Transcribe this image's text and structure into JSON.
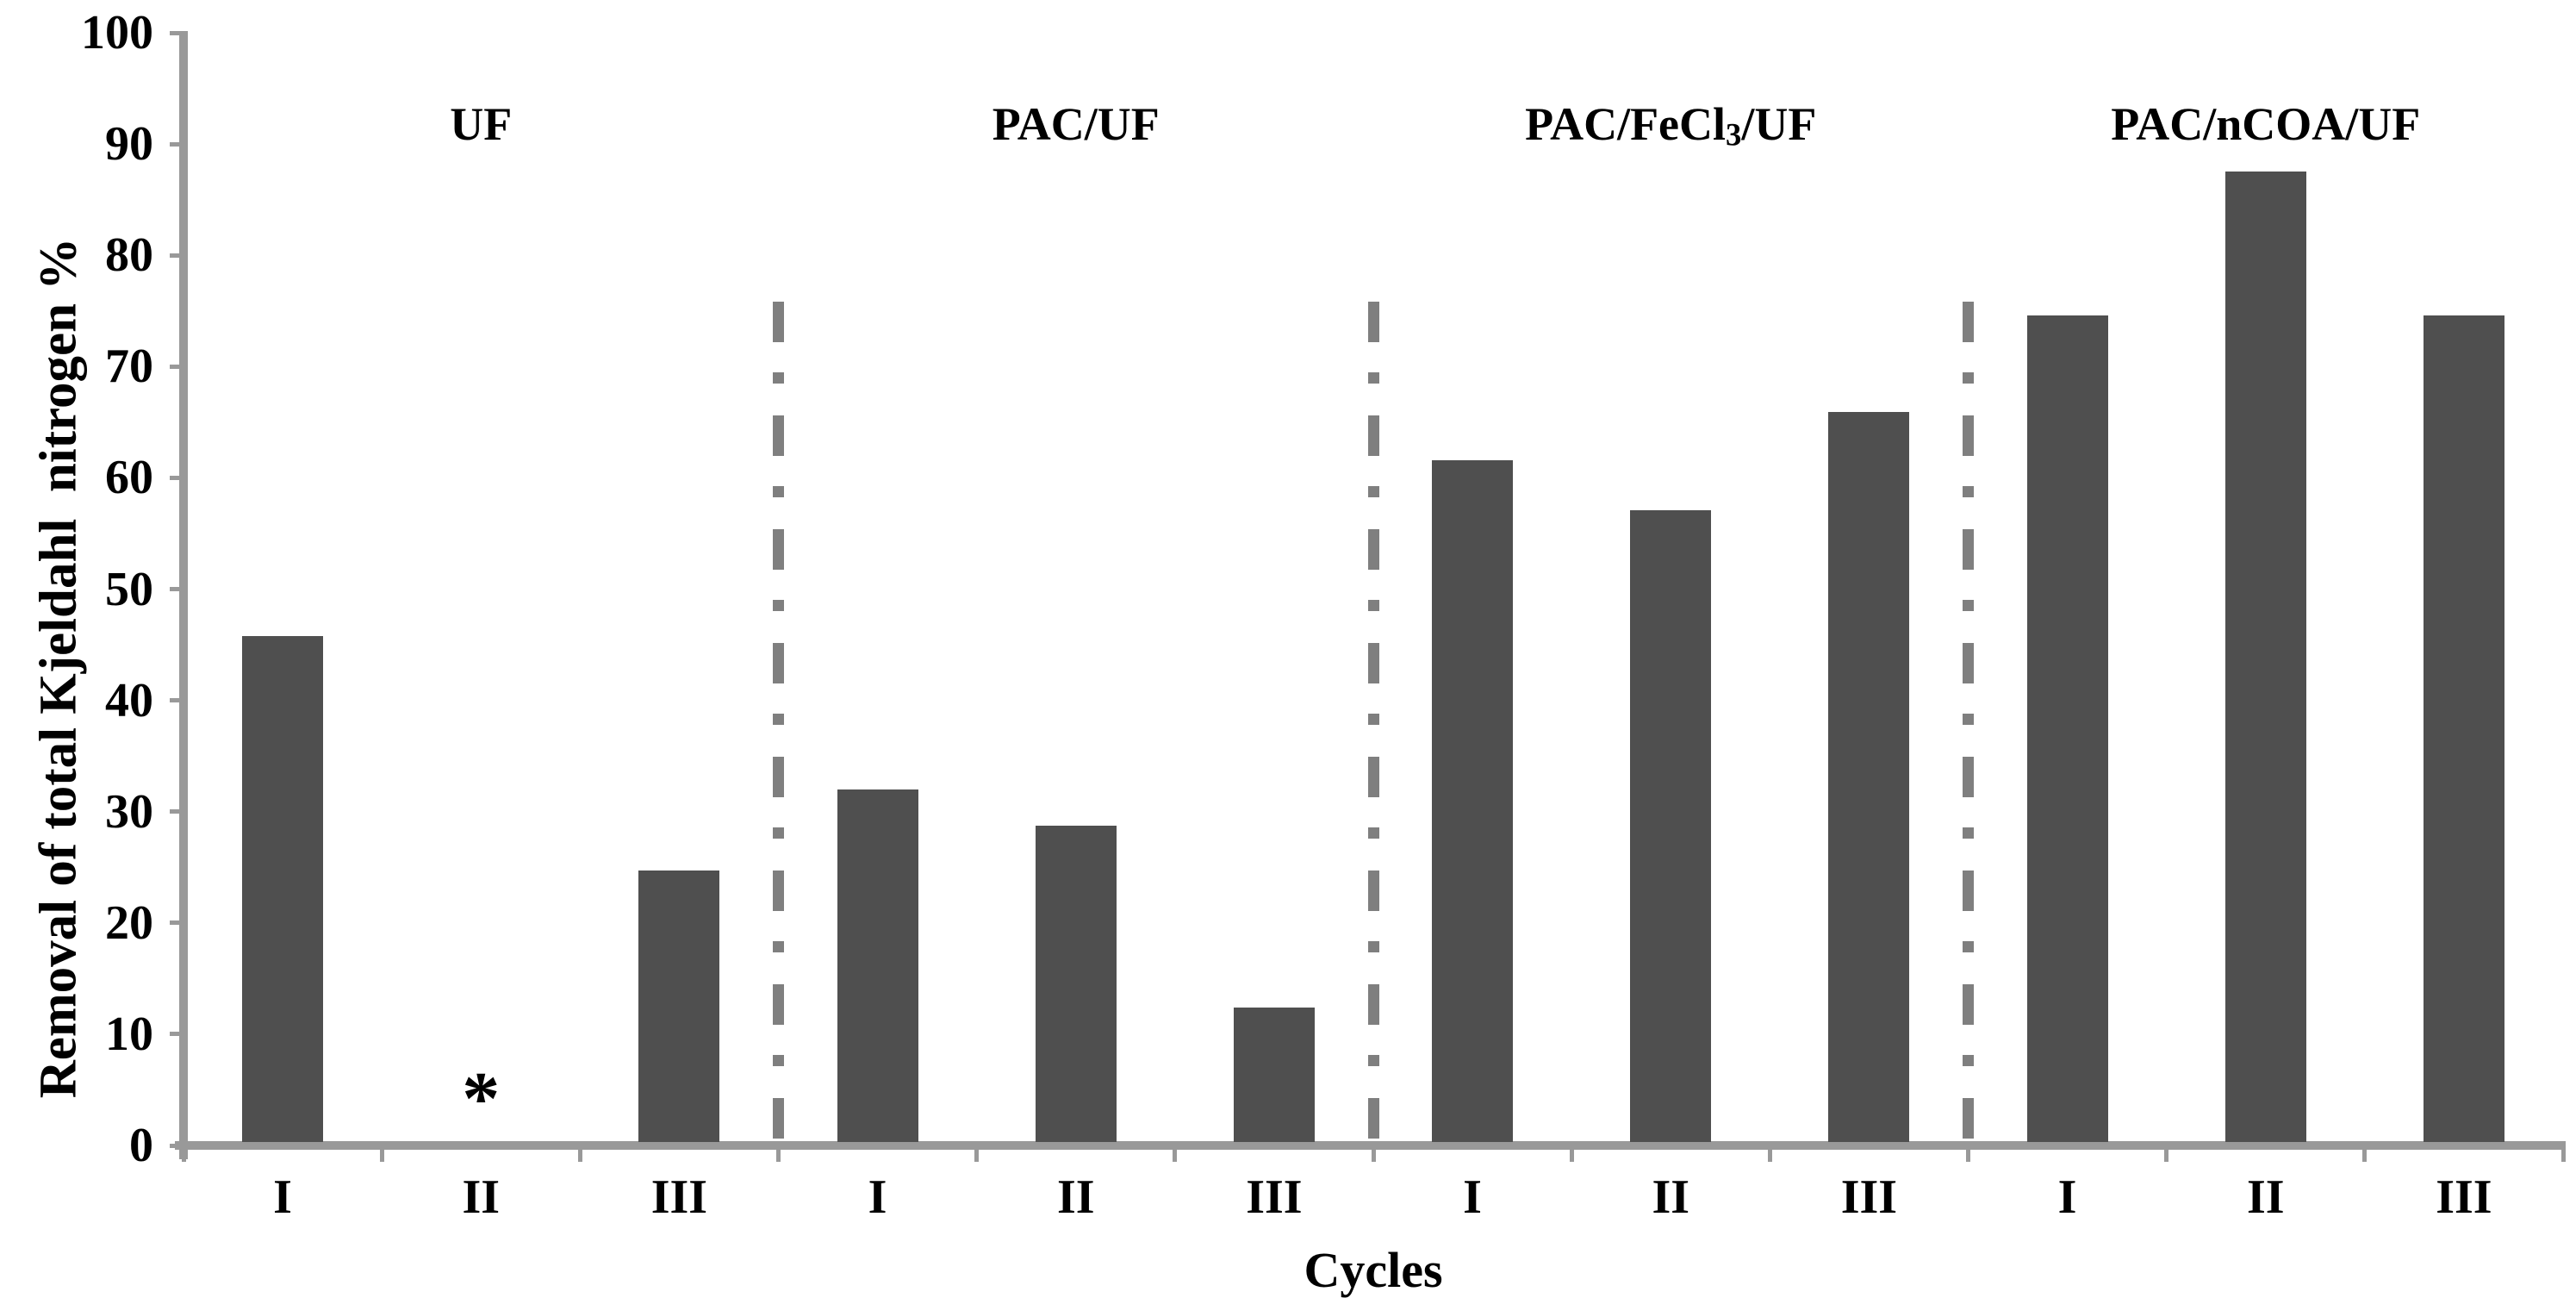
{
  "chart_data": {
    "type": "bar",
    "title": "",
    "ylabel": "Removal of total Kjeldahl  nitrogen %",
    "xlabel": "Cycles",
    "ylim": [
      0,
      100
    ],
    "y_ticks": [
      0,
      10,
      20,
      30,
      40,
      50,
      60,
      70,
      80,
      90,
      100
    ],
    "grid": false,
    "legend": false,
    "bar_color": "#4f4f4f",
    "axis_color": "#999999",
    "divider_color": "#7f7f7f",
    "text_color": "#000000",
    "cycle_labels": [
      "I",
      "II",
      "III"
    ],
    "groups": [
      {
        "name": "UF",
        "label_pre": "UF",
        "label_sub": "",
        "label_post": "",
        "values": [
          45.5,
          null,
          24.4
        ]
      },
      {
        "name": "PAC/UF",
        "label_pre": "PAC/UF",
        "label_sub": "",
        "label_post": "",
        "values": [
          31.7,
          28.4,
          12.1
        ]
      },
      {
        "name": "PAC/FeCl3/UF",
        "label_pre": "PAC/FeCl",
        "label_sub": "3",
        "label_post": "/UF",
        "values": [
          61.3,
          56.8,
          65.6
        ]
      },
      {
        "name": "PAC/nCOA/UF",
        "label_pre": "PAC/nCOA/UF",
        "label_sub": "",
        "label_post": "",
        "values": [
          74.3,
          87.2,
          74.3
        ]
      }
    ],
    "annotations": [
      {
        "text": "*",
        "group": "UF",
        "cycle": "II"
      }
    ]
  }
}
